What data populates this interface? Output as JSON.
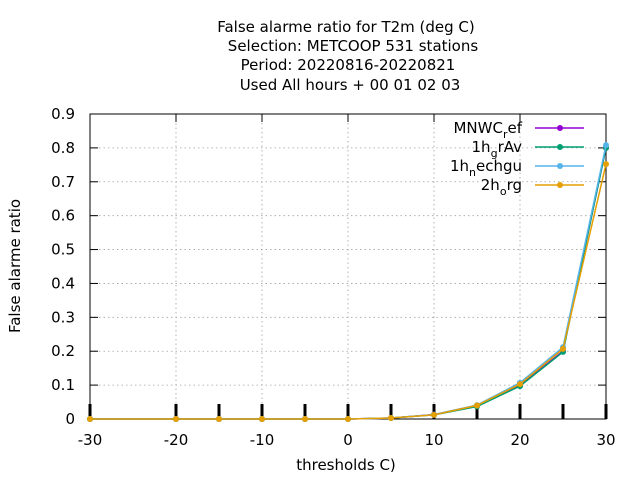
{
  "chart_data": {
    "type": "line",
    "title_lines": [
      "False alarme ratio  for T2m (deg C)",
      "Selection: METCOOP    531 stations",
      "Period: 20220816-20220821",
      "Used  All hours  + 00 01 02 03"
    ],
    "xlabel": "thresholds C)",
    "ylabel": "False alarme ratio",
    "xlim": [
      -30,
      30
    ],
    "ylim": [
      0,
      0.9
    ],
    "x_ticks": [
      "-30",
      "-20",
      "-10",
      "0",
      "10",
      "20",
      "30"
    ],
    "y_ticks": [
      "0",
      "0.1",
      "0.2",
      "0.3",
      "0.4",
      "0.5",
      "0.6",
      "0.7",
      "0.8",
      "0.9"
    ],
    "x": [
      -30,
      -20,
      -15,
      -10,
      -5,
      0,
      5,
      10,
      15,
      20,
      25,
      30
    ],
    "grid": true,
    "legend_position": "top-right",
    "series": [
      {
        "name": "MNWC_ref",
        "legend_base": "MNWC",
        "legend_sub": "r",
        "legend_rest": "ef",
        "color": "#9400d3",
        "values": [
          0,
          0,
          0,
          0,
          0,
          0,
          0.003,
          0.013,
          0.04,
          0.1,
          0.2,
          0.8
        ]
      },
      {
        "name": "1h_grAv",
        "legend_base": "1h",
        "legend_sub": "g",
        "legend_rest": "rAv",
        "color": "#009e73",
        "values": [
          0,
          0,
          0,
          0,
          0,
          0,
          0.003,
          0.012,
          0.037,
          0.097,
          0.198,
          0.8
        ]
      },
      {
        "name": "1h_nechgu",
        "legend_base": "1h",
        "legend_sub": "n",
        "legend_rest": "echgu",
        "color": "#56b4e9",
        "values": [
          0,
          0,
          0,
          0,
          0,
          0,
          0.003,
          0.013,
          0.041,
          0.107,
          0.212,
          0.808
        ]
      },
      {
        "name": "2h_org",
        "legend_base": "2h",
        "legend_sub": "o",
        "legend_rest": "rg",
        "color": "#e69f00",
        "values": [
          0,
          0,
          0,
          0,
          0,
          0,
          0.003,
          0.012,
          0.04,
          0.103,
          0.207,
          0.752
        ]
      }
    ]
  }
}
